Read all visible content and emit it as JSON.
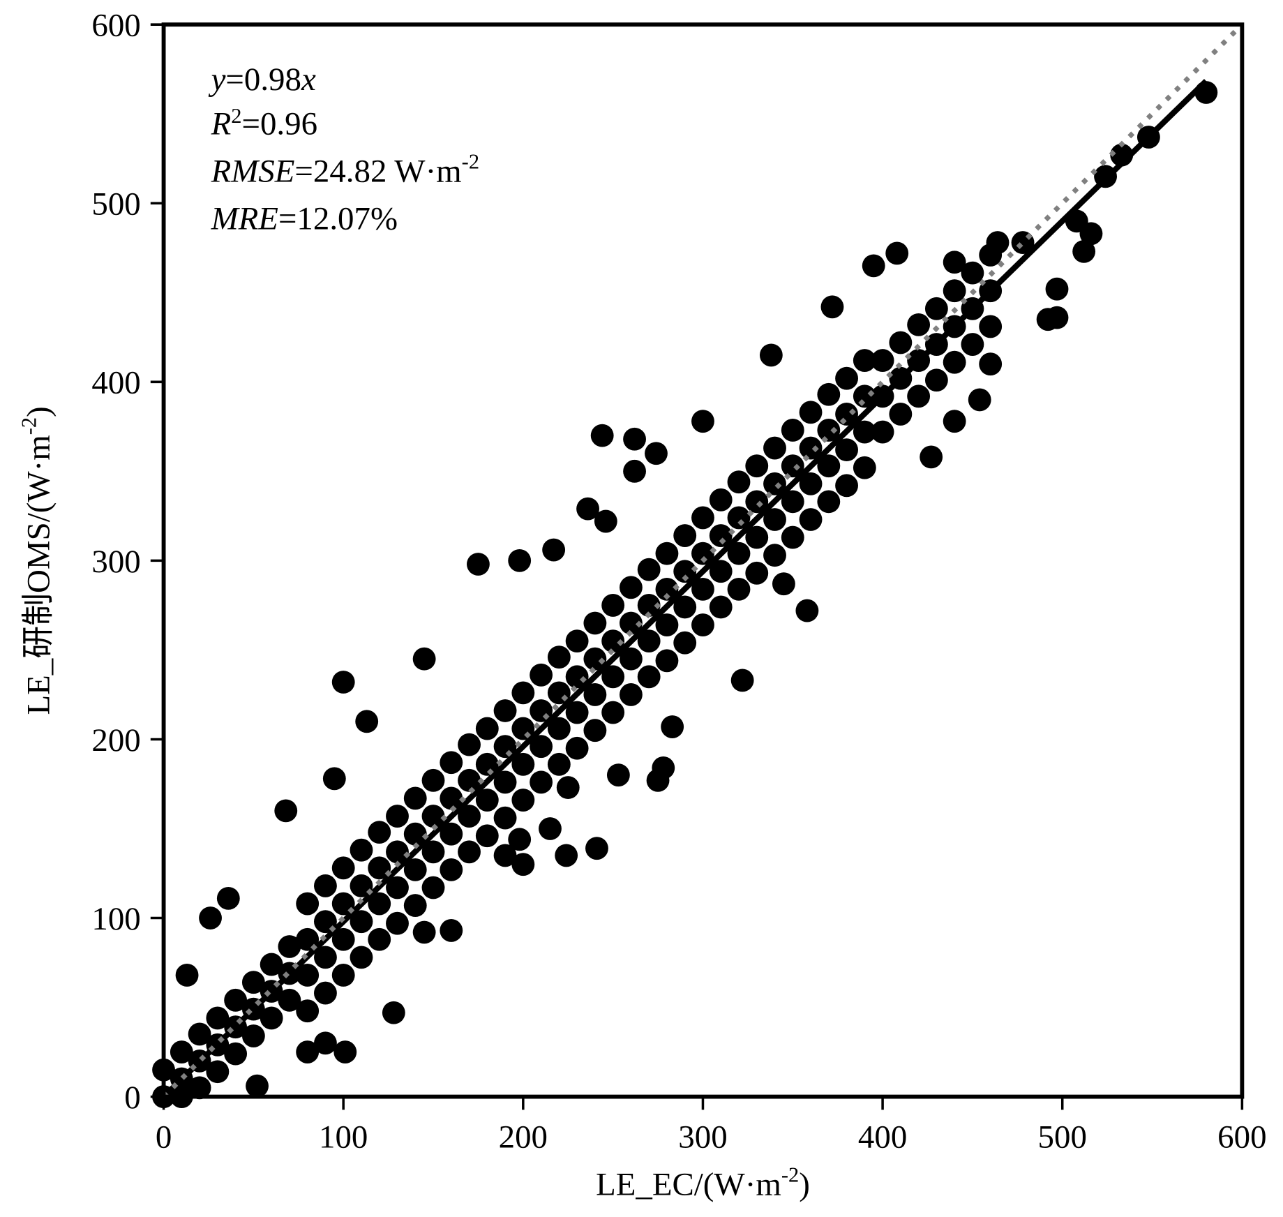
{
  "chart_data": {
    "type": "scatter",
    "xlabel": "LE_EC/(W·m",
    "xlabel_sup": "-2",
    "xlabel_end": ")",
    "ylabel": "LE_研制OMS/(W·m",
    "ylabel_sup": "-2",
    "ylabel_end": ")",
    "xlim": [
      0,
      600
    ],
    "ylim": [
      0,
      600
    ],
    "xticks": [
      "0",
      "100",
      "200",
      "300",
      "400",
      "500",
      "600"
    ],
    "yticks": [
      "0",
      "100",
      "200",
      "300",
      "400",
      "500",
      "600"
    ],
    "grid": false,
    "marker_color": "#000000",
    "fit_line": {
      "slope": 0.98,
      "x_range": [
        0,
        580
      ],
      "color": "#000000",
      "style": "solid"
    },
    "reference_line": {
      "slope": 1,
      "x_range": [
        0,
        600
      ],
      "color": "#808080",
      "style": "dotted"
    },
    "annotations": {
      "equation": {
        "var_y": "y",
        "eq": "=0.98",
        "var_x": "x"
      },
      "r2": {
        "var": "R",
        "sup": "2",
        "value": "=0.96"
      },
      "rmse": {
        "var": "RMSE",
        "value": "=24.82 W·m",
        "sup": "-2"
      },
      "mre": {
        "var": "MRE",
        "value": "=12.07%"
      }
    },
    "points": [
      [
        0,
        0
      ],
      [
        0,
        15
      ],
      [
        10,
        0
      ],
      [
        10,
        10
      ],
      [
        10,
        25
      ],
      [
        20,
        5
      ],
      [
        20,
        20
      ],
      [
        20,
        35
      ],
      [
        30,
        14
      ],
      [
        30,
        29
      ],
      [
        30,
        44
      ],
      [
        40,
        24
      ],
      [
        40,
        39
      ],
      [
        40,
        54
      ],
      [
        50,
        34
      ],
      [
        50,
        49
      ],
      [
        50,
        64
      ],
      [
        60,
        44
      ],
      [
        60,
        59
      ],
      [
        60,
        74
      ],
      [
        70,
        54
      ],
      [
        70,
        69
      ],
      [
        70,
        84
      ],
      [
        80,
        48
      ],
      [
        80,
        68
      ],
      [
        80,
        88
      ],
      [
        80,
        108
      ],
      [
        90,
        58
      ],
      [
        90,
        78
      ],
      [
        90,
        98
      ],
      [
        90,
        118
      ],
      [
        100,
        68
      ],
      [
        100,
        88
      ],
      [
        100,
        108
      ],
      [
        100,
        128
      ],
      [
        110,
        78
      ],
      [
        110,
        98
      ],
      [
        110,
        118
      ],
      [
        110,
        138
      ],
      [
        120,
        88
      ],
      [
        120,
        108
      ],
      [
        120,
        128
      ],
      [
        120,
        148
      ],
      [
        130,
        97
      ],
      [
        130,
        117
      ],
      [
        130,
        137
      ],
      [
        130,
        157
      ],
      [
        140,
        107
      ],
      [
        140,
        127
      ],
      [
        140,
        147
      ],
      [
        140,
        167
      ],
      [
        150,
        117
      ],
      [
        150,
        137
      ],
      [
        150,
        157
      ],
      [
        150,
        177
      ],
      [
        160,
        127
      ],
      [
        160,
        147
      ],
      [
        160,
        167
      ],
      [
        160,
        187
      ],
      [
        170,
        137
      ],
      [
        170,
        157
      ],
      [
        170,
        177
      ],
      [
        170,
        197
      ],
      [
        180,
        146
      ],
      [
        180,
        166
      ],
      [
        180,
        186
      ],
      [
        180,
        206
      ],
      [
        190,
        156
      ],
      [
        190,
        176
      ],
      [
        190,
        196
      ],
      [
        190,
        216
      ],
      [
        200,
        166
      ],
      [
        200,
        186
      ],
      [
        200,
        206
      ],
      [
        200,
        226
      ],
      [
        210,
        176
      ],
      [
        210,
        196
      ],
      [
        210,
        216
      ],
      [
        210,
        236
      ],
      [
        220,
        186
      ],
      [
        220,
        206
      ],
      [
        220,
        226
      ],
      [
        220,
        246
      ],
      [
        230,
        195
      ],
      [
        230,
        215
      ],
      [
        230,
        235
      ],
      [
        230,
        255
      ],
      [
        240,
        205
      ],
      [
        240,
        225
      ],
      [
        240,
        245
      ],
      [
        240,
        265
      ],
      [
        250,
        215
      ],
      [
        250,
        235
      ],
      [
        250,
        255
      ],
      [
        250,
        275
      ],
      [
        260,
        225
      ],
      [
        260,
        245
      ],
      [
        260,
        265
      ],
      [
        260,
        285
      ],
      [
        270,
        235
      ],
      [
        270,
        255
      ],
      [
        270,
        275
      ],
      [
        270,
        295
      ],
      [
        280,
        244
      ],
      [
        280,
        264
      ],
      [
        280,
        284
      ],
      [
        280,
        304
      ],
      [
        290,
        254
      ],
      [
        290,
        274
      ],
      [
        290,
        294
      ],
      [
        290,
        314
      ],
      [
        300,
        264
      ],
      [
        300,
        284
      ],
      [
        300,
        304
      ],
      [
        300,
        324
      ],
      [
        310,
        274
      ],
      [
        310,
        294
      ],
      [
        310,
        314
      ],
      [
        310,
        334
      ],
      [
        320,
        284
      ],
      [
        320,
        304
      ],
      [
        320,
        324
      ],
      [
        320,
        344
      ],
      [
        330,
        293
      ],
      [
        330,
        313
      ],
      [
        330,
        333
      ],
      [
        330,
        353
      ],
      [
        340,
        303
      ],
      [
        340,
        323
      ],
      [
        340,
        343
      ],
      [
        340,
        363
      ],
      [
        350,
        313
      ],
      [
        350,
        333
      ],
      [
        350,
        353
      ],
      [
        350,
        373
      ],
      [
        360,
        323
      ],
      [
        360,
        343
      ],
      [
        360,
        363
      ],
      [
        360,
        383
      ],
      [
        370,
        333
      ],
      [
        370,
        353
      ],
      [
        370,
        373
      ],
      [
        370,
        393
      ],
      [
        380,
        342
      ],
      [
        380,
        362
      ],
      [
        380,
        382
      ],
      [
        380,
        402
      ],
      [
        390,
        352
      ],
      [
        390,
        372
      ],
      [
        390,
        392
      ],
      [
        390,
        412
      ],
      [
        400,
        372
      ],
      [
        400,
        392
      ],
      [
        400,
        412
      ],
      [
        410,
        382
      ],
      [
        410,
        402
      ],
      [
        410,
        422
      ],
      [
        420,
        392
      ],
      [
        420,
        412
      ],
      [
        420,
        432
      ],
      [
        430,
        401
      ],
      [
        430,
        421
      ],
      [
        430,
        441
      ],
      [
        440,
        411
      ],
      [
        440,
        431
      ],
      [
        440,
        451
      ],
      [
        450,
        421
      ],
      [
        450,
        441
      ],
      [
        450,
        461
      ],
      [
        460,
        431
      ],
      [
        460,
        451
      ],
      [
        460,
        471
      ],
      [
        100,
        232
      ],
      [
        101,
        25
      ],
      [
        128,
        47
      ],
      [
        175,
        298
      ],
      [
        198,
        300
      ],
      [
        217,
        306
      ],
      [
        244,
        370
      ],
      [
        262,
        368
      ],
      [
        274,
        360
      ],
      [
        262,
        350
      ],
      [
        236,
        329
      ],
      [
        246,
        322
      ],
      [
        300,
        378
      ],
      [
        358,
        272
      ],
      [
        322,
        233
      ],
      [
        338,
        415
      ],
      [
        372,
        442
      ],
      [
        395,
        465
      ],
      [
        408,
        472
      ],
      [
        464,
        478
      ],
      [
        478,
        478
      ],
      [
        440,
        467
      ],
      [
        508,
        490
      ],
      [
        512,
        473
      ],
      [
        516,
        483
      ],
      [
        497,
        452
      ],
      [
        497,
        436
      ],
      [
        492,
        435
      ],
      [
        524,
        515
      ],
      [
        533,
        527
      ],
      [
        548,
        537
      ],
      [
        580,
        562
      ],
      [
        454,
        390
      ],
      [
        460,
        410
      ],
      [
        440,
        378
      ],
      [
        427,
        358
      ],
      [
        241,
        139
      ],
      [
        224,
        135
      ],
      [
        200,
        130
      ],
      [
        198,
        144
      ],
      [
        275,
        177
      ],
      [
        278,
        184
      ],
      [
        283,
        207
      ],
      [
        145,
        245
      ],
      [
        113,
        210
      ],
      [
        68,
        160
      ],
      [
        95,
        178
      ],
      [
        160,
        93
      ],
      [
        145,
        92
      ],
      [
        36,
        111
      ],
      [
        26,
        100
      ],
      [
        13,
        68
      ],
      [
        52,
        6
      ],
      [
        80,
        25
      ],
      [
        90,
        30
      ],
      [
        190,
        135
      ],
      [
        215,
        150
      ],
      [
        225,
        173
      ],
      [
        253,
        180
      ],
      [
        345,
        287
      ]
    ]
  }
}
